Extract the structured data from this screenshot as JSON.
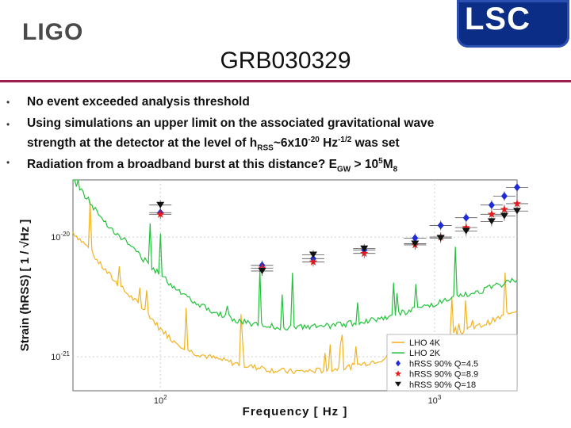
{
  "header": {
    "ligo_logo": "LIGO",
    "lsc_logo": "LSC",
    "title": "GRB030329"
  },
  "bullets": [
    {
      "text": "No event exceeded analysis threshold"
    },
    {
      "line1": "Using simulations an upper limit on the associated gravitational wave",
      "line2_pre": "strength at the detector at the level of h",
      "line2_sub": "RSS",
      "line2_mid": "~6x10",
      "line2_sup1": "-20",
      "line2_mid2": " Hz",
      "line2_sup2": "-1/2",
      "line2_post": "  was set"
    },
    {
      "pre": "Radiation from a broadband burst at this distance? E",
      "sub1": "GW",
      "mid": " > 10",
      "sup": "5",
      "mid2": "M",
      "sub2": "8"
    }
  ],
  "colors": {
    "lho4k": "#f2b31f",
    "lho2k": "#22c23a",
    "q45": "#1f2ad8",
    "q89": "#e8181c",
    "q18": "#111111",
    "rule": "#9c1f4f",
    "lsc_bg": "#0b2d86"
  },
  "chart_data": {
    "type": "line",
    "xlabel": "Frequency [ Hz ]",
    "ylabel": "Strain (hRSS) [ 1 / √Hz ]",
    "xscale": "log",
    "yscale": "log",
    "xlim": [
      48,
      2000
    ],
    "ylim": [
      5.2e-22,
      3e-20
    ],
    "xticks": [
      {
        "value": 100,
        "base": "10",
        "exp": "2"
      },
      {
        "value": 1000,
        "base": "10",
        "exp": "3"
      }
    ],
    "yticks": [
      {
        "value": 1e-20,
        "base": "10",
        "exp": "-20"
      },
      {
        "value": 1e-21,
        "base": "10",
        "exp": "-21"
      }
    ],
    "legend_position": "bottom-right",
    "series": [
      {
        "name": "LHO 4K",
        "kind": "line",
        "color": "#f2b31f",
        "x": [
          48,
          55,
          60,
          70,
          80,
          90,
          100,
          110,
          130,
          150,
          180,
          200,
          250,
          300,
          400,
          500,
          600,
          700,
          800,
          1000,
          1200,
          1500,
          1800,
          2000
        ],
        "y": [
          1.1e-20,
          8e-21,
          6e-21,
          4e-21,
          3e-21,
          2.3e-21,
          1.7e-21,
          1.4e-21,
          1.1e-21,
          1e-21,
          9e-22,
          8.5e-22,
          7.8e-22,
          7.5e-22,
          7.7e-22,
          8.3e-22,
          9.2e-22,
          1e-21,
          1.12e-21,
          1.3e-21,
          1.55e-21,
          1.85e-21,
          2.2e-21,
          2.5e-21
        ]
      },
      {
        "name": "LHO 2K",
        "kind": "line",
        "color": "#22c23a",
        "x": [
          48,
          55,
          60,
          70,
          80,
          90,
          100,
          110,
          130,
          150,
          180,
          200,
          250,
          300,
          400,
          500,
          600,
          700,
          800,
          1000,
          1200,
          1500,
          1800,
          2000
        ],
        "y": [
          3e-20,
          2e-20,
          1.5e-20,
          1.05e-20,
          8e-21,
          6e-21,
          4.8e-21,
          4e-21,
          3e-21,
          2.5e-21,
          2.1e-21,
          1.95e-21,
          1.8e-21,
          1.75e-21,
          1.8e-21,
          1.9e-21,
          2.05e-21,
          2.2e-21,
          2.4e-21,
          2.75e-21,
          3.1e-21,
          3.6e-21,
          4.1e-21,
          4.5e-21
        ]
      },
      {
        "name": "hRSS 90% Q=4.5",
        "kind": "points",
        "marker": "diamond",
        "color": "#1f2ad8",
        "x": [
          100,
          235,
          361,
          554,
          849,
          1053,
          1304,
          1615,
          1797,
          2000
        ],
        "y": [
          1.6e-20,
          5.8e-21,
          6.6e-21,
          7.8e-21,
          9.8e-21,
          1.25e-20,
          1.45e-20,
          1.85e-20,
          2.2e-20,
          2.6e-20
        ]
      },
      {
        "name": "hRSS 90% Q=8.9",
        "kind": "points",
        "marker": "star",
        "color": "#e8181c",
        "x": [
          100,
          235,
          361,
          554,
          849,
          1053,
          1304,
          1615,
          1797,
          2000
        ],
        "y": [
          1.55e-20,
          5.5e-21,
          6.2e-21,
          7.3e-21,
          8.6e-21,
          1e-20,
          1.2e-20,
          1.55e-20,
          1.7e-20,
          1.9e-20
        ]
      },
      {
        "name": "hRSS 90% Q=18",
        "kind": "points",
        "marker": "triangle",
        "color": "#111111",
        "x": [
          100,
          235,
          361,
          554,
          849,
          1053,
          1304,
          1615,
          1797,
          2000
        ],
        "y": [
          1.85e-20,
          5.2e-21,
          7.1e-21,
          8e-21,
          8.8e-21,
          9.8e-21,
          1.12e-20,
          1.35e-20,
          1.5e-20,
          1.65e-20
        ]
      }
    ]
  }
}
